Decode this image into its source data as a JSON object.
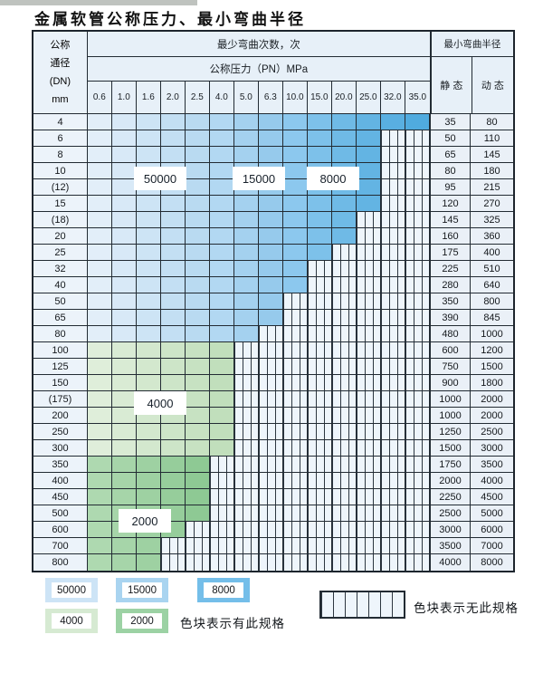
{
  "title": "金属软管公称压力、最小弯曲半径",
  "table": {
    "dn_header_lines": [
      "公称",
      "通径",
      "(DN)",
      "mm"
    ],
    "bend_cycles_header": "最少弯曲次数，次",
    "pressure_header": "公称压力（PN）MPa",
    "radius_header": "最小弯曲半径",
    "static_header": "静 态",
    "dynamic_header": "动 态",
    "pressure_columns": [
      "0.6",
      "1.0",
      "1.6",
      "2.0",
      "2.5",
      "4.0",
      "5.0",
      "6.3",
      "10.0",
      "15.0",
      "20.0",
      "25.0",
      "32.0",
      "35.0"
    ],
    "rows": [
      {
        "dn": "4",
        "colored": 14,
        "static": "35",
        "dynamic": "80"
      },
      {
        "dn": "6",
        "colored": 12,
        "static": "50",
        "dynamic": "110"
      },
      {
        "dn": "8",
        "colored": 12,
        "static": "65",
        "dynamic": "145"
      },
      {
        "dn": "10",
        "colored": 12,
        "static": "80",
        "dynamic": "180"
      },
      {
        "dn": "(12)",
        "colored": 12,
        "static": "95",
        "dynamic": "215"
      },
      {
        "dn": "15",
        "colored": 12,
        "static": "120",
        "dynamic": "270"
      },
      {
        "dn": "(18)",
        "colored": 11,
        "static": "145",
        "dynamic": "325"
      },
      {
        "dn": "20",
        "colored": 11,
        "static": "160",
        "dynamic": "360"
      },
      {
        "dn": "25",
        "colored": 10,
        "static": "175",
        "dynamic": "400"
      },
      {
        "dn": "32",
        "colored": 9,
        "static": "225",
        "dynamic": "510"
      },
      {
        "dn": "40",
        "colored": 9,
        "static": "280",
        "dynamic": "640"
      },
      {
        "dn": "50",
        "colored": 8,
        "static": "350",
        "dynamic": "800"
      },
      {
        "dn": "65",
        "colored": 8,
        "static": "390",
        "dynamic": "845"
      },
      {
        "dn": "80",
        "colored": 7,
        "static": "480",
        "dynamic": "1000"
      },
      {
        "dn": "100",
        "colored": 6,
        "static": "600",
        "dynamic": "1200"
      },
      {
        "dn": "125",
        "colored": 6,
        "static": "750",
        "dynamic": "1500"
      },
      {
        "dn": "150",
        "colored": 6,
        "static": "900",
        "dynamic": "1800"
      },
      {
        "dn": "(175)",
        "colored": 6,
        "static": "1000",
        "dynamic": "2000"
      },
      {
        "dn": "200",
        "colored": 6,
        "static": "1000",
        "dynamic": "2000"
      },
      {
        "dn": "250",
        "colored": 6,
        "static": "1250",
        "dynamic": "2500"
      },
      {
        "dn": "300",
        "colored": 6,
        "static": "1500",
        "dynamic": "3000"
      },
      {
        "dn": "350",
        "colored": 5,
        "static": "1750",
        "dynamic": "3500"
      },
      {
        "dn": "400",
        "colored": 5,
        "static": "2000",
        "dynamic": "4000"
      },
      {
        "dn": "450",
        "colored": 5,
        "static": "2250",
        "dynamic": "4500"
      },
      {
        "dn": "500",
        "colored": 5,
        "static": "2500",
        "dynamic": "5000"
      },
      {
        "dn": "600",
        "colored": 4,
        "static": "3000",
        "dynamic": "6000"
      },
      {
        "dn": "700",
        "colored": 3,
        "static": "3500",
        "dynamic": "7000"
      },
      {
        "dn": "800",
        "colored": 3,
        "static": "4000",
        "dynamic": "8000"
      }
    ],
    "band_layout": {
      "blue_rows": "DN 4-80",
      "band_50000_columns": [
        "0.6",
        "1.0",
        "1.6",
        "2.0",
        "2.5"
      ],
      "band_15000_columns": [
        "4.0",
        "5.0",
        "6.3"
      ],
      "band_8000_columns": [
        "10.0",
        "15.0",
        "20.0",
        "25.0",
        "32.0",
        "35.0"
      ],
      "band_4000_rows": [
        "100",
        "125",
        "150",
        "(175)",
        "200",
        "250",
        "300"
      ],
      "band_2000_rows": [
        "350",
        "400",
        "450",
        "500",
        "600",
        "700",
        "800"
      ]
    }
  },
  "overlays": [
    {
      "id": "tag-50000",
      "text": "50000"
    },
    {
      "id": "tag-15000",
      "text": "15000"
    },
    {
      "id": "tag-8000",
      "text": "8000"
    },
    {
      "id": "tag-4000",
      "text": "4000"
    },
    {
      "id": "tag-2000",
      "text": "2000"
    }
  ],
  "legend": {
    "row1": [
      {
        "value": "50000",
        "color": "#cde4f6"
      },
      {
        "value": "15000",
        "color": "#a9d4f0"
      },
      {
        "value": "8000",
        "color": "#74bee9"
      }
    ],
    "row2": [
      {
        "value": "4000",
        "color": "#d6ead2"
      },
      {
        "value": "2000",
        "color": "#9cd2a4"
      }
    ],
    "has_spec_label": "色块表示有此规格",
    "no_spec_label": "色块表示无此规格"
  },
  "colors": {
    "band_50000": "#cde4f6",
    "band_15000": "#a9d4f0",
    "band_8000": "#74bee9",
    "band_4000": "#d6ead2",
    "band_2000": "#9cd2a4",
    "no_spec_fill": "#eef5fb",
    "grid_line": "#222b33"
  }
}
